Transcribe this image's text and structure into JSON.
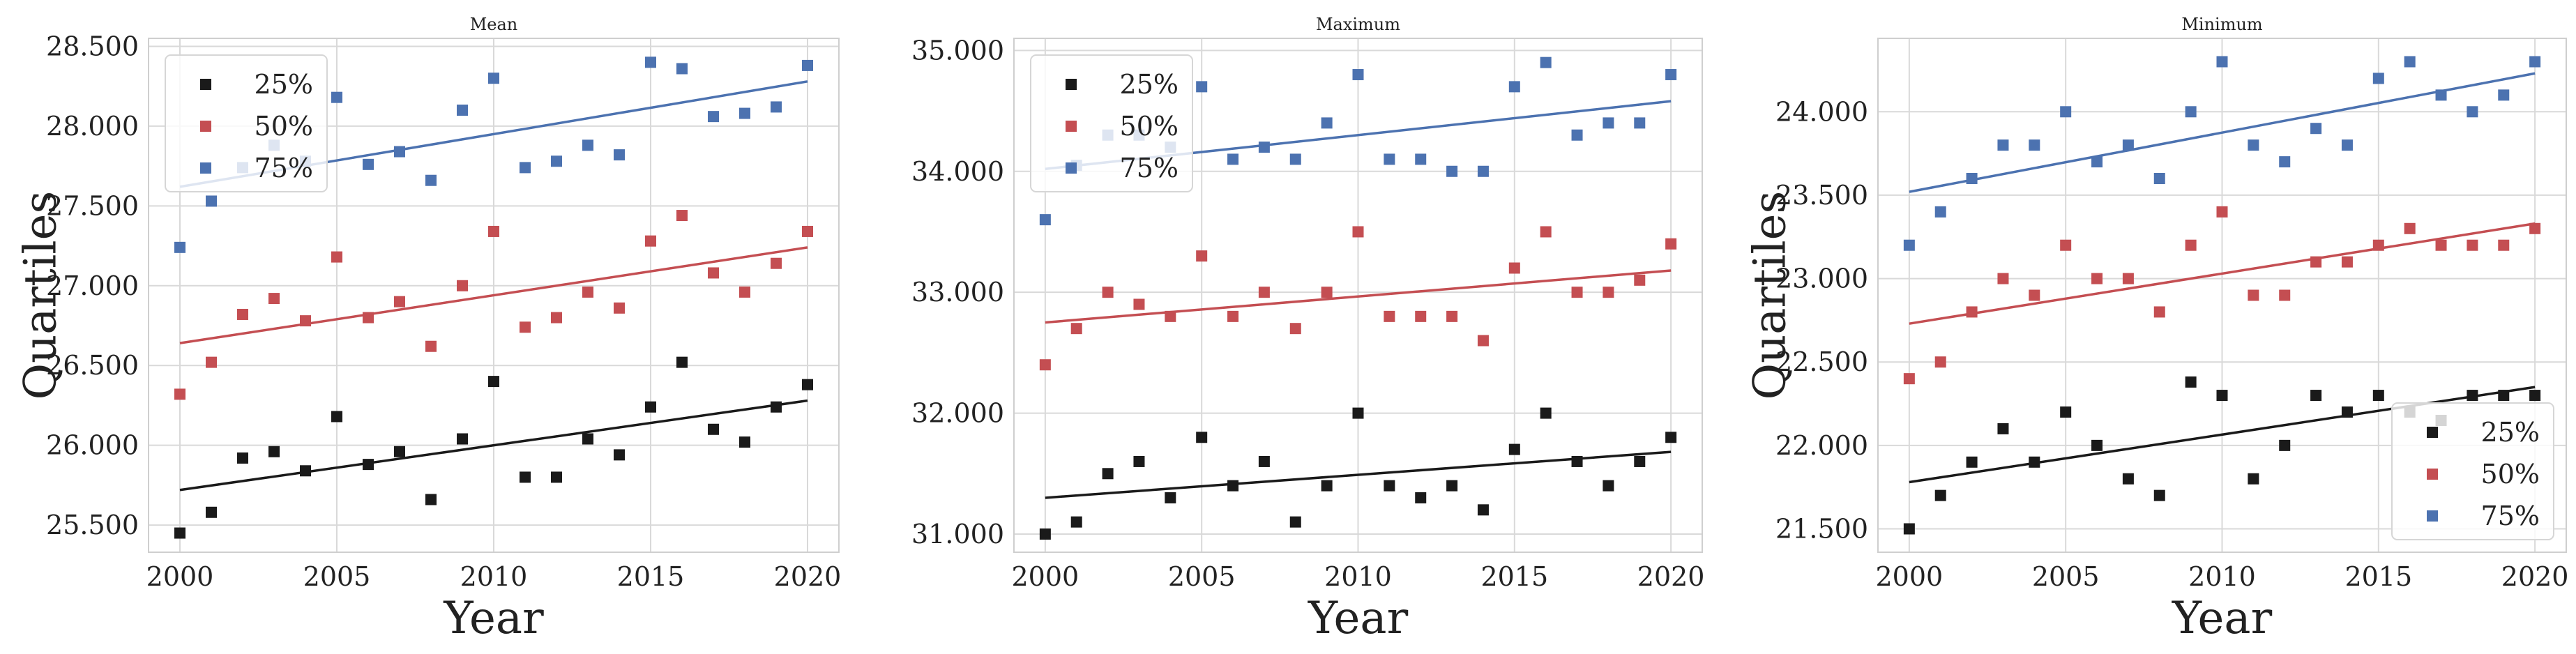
{
  "colors": {
    "25%": "#1a1a1a",
    "50%": "#c44e52",
    "75%": "#4c72b0"
  },
  "series_names": [
    "25%",
    "50%",
    "75%"
  ],
  "chart_data": [
    {
      "type": "scatter",
      "title": "Mean",
      "xlabel": "Year",
      "ylabel": "Quartiles",
      "xlim": [
        1999,
        2021
      ],
      "ylim": [
        25.33,
        28.55
      ],
      "xticks": [
        2000,
        2005,
        2010,
        2015,
        2020
      ],
      "xtick_labels": [
        "2000",
        "2005",
        "2010",
        "2015",
        "2020"
      ],
      "yticks": [
        25.5,
        26.0,
        26.5,
        27.0,
        27.5,
        28.0,
        28.5
      ],
      "ytick_labels": [
        "25.500",
        "26.000",
        "26.500",
        "27.000",
        "27.500",
        "28.000",
        "28.500"
      ],
      "legend": {
        "position": "upper-left",
        "entries": [
          "25%",
          "50%",
          "75%"
        ]
      },
      "x": [
        2000,
        2001,
        2002,
        2003,
        2004,
        2005,
        2006,
        2007,
        2008,
        2009,
        2010,
        2011,
        2012,
        2013,
        2014,
        2015,
        2016,
        2017,
        2018,
        2019,
        2020
      ],
      "series": [
        {
          "name": "25%",
          "values": [
            25.45,
            25.58,
            25.92,
            25.96,
            25.84,
            26.18,
            25.88,
            25.96,
            25.66,
            26.04,
            26.4,
            25.8,
            25.8,
            26.04,
            25.94,
            26.24,
            26.52,
            26.1,
            26.02,
            26.24,
            26.38
          ],
          "trend": [
            25.72,
            26.28
          ]
        },
        {
          "name": "50%",
          "values": [
            26.32,
            26.52,
            26.82,
            26.92,
            26.78,
            27.18,
            26.8,
            26.9,
            26.62,
            27.0,
            27.34,
            26.74,
            26.8,
            26.96,
            26.86,
            27.28,
            27.44,
            27.08,
            26.96,
            27.14,
            27.34
          ],
          "trend": [
            26.64,
            27.24
          ]
        },
        {
          "name": "75%",
          "values": [
            27.24,
            27.53,
            27.74,
            27.88,
            27.78,
            28.18,
            27.76,
            27.84,
            27.66,
            28.1,
            28.3,
            27.74,
            27.78,
            27.88,
            27.82,
            28.4,
            28.36,
            28.06,
            28.08,
            28.12,
            28.38
          ],
          "trend": [
            27.62,
            28.28
          ]
        }
      ]
    },
    {
      "type": "scatter",
      "title": "Maximum",
      "xlabel": "Year",
      "ylabel": "",
      "xlim": [
        1999,
        2021
      ],
      "ylim": [
        30.85,
        35.1
      ],
      "xticks": [
        2000,
        2005,
        2010,
        2015,
        2020
      ],
      "xtick_labels": [
        "2000",
        "2005",
        "2010",
        "2015",
        "2020"
      ],
      "yticks": [
        31.0,
        32.0,
        33.0,
        34.0,
        35.0
      ],
      "ytick_labels": [
        "31.000",
        "32.000",
        "33.000",
        "34.000",
        "35.000"
      ],
      "legend": {
        "position": "upper-left",
        "entries": [
          "25%",
          "50%",
          "75%"
        ]
      },
      "x": [
        2000,
        2001,
        2002,
        2003,
        2004,
        2005,
        2006,
        2007,
        2008,
        2009,
        2010,
        2011,
        2012,
        2013,
        2014,
        2015,
        2016,
        2017,
        2018,
        2019,
        2020
      ],
      "series": [
        {
          "name": "25%",
          "values": [
            31.0,
            31.1,
            31.5,
            31.6,
            31.3,
            31.8,
            31.4,
            31.6,
            31.1,
            31.4,
            32.0,
            31.4,
            31.3,
            31.4,
            31.2,
            31.7,
            32.0,
            31.6,
            31.4,
            31.6,
            31.8
          ],
          "trend": [
            31.3,
            31.68
          ]
        },
        {
          "name": "50%",
          "values": [
            32.4,
            32.7,
            33.0,
            32.9,
            32.8,
            33.3,
            32.8,
            33.0,
            32.7,
            33.0,
            33.5,
            32.8,
            32.8,
            32.8,
            32.6,
            33.2,
            33.5,
            33.0,
            33.0,
            33.1,
            33.4
          ],
          "trend": [
            32.75,
            33.18
          ]
        },
        {
          "name": "75%",
          "values": [
            33.6,
            34.05,
            34.3,
            34.3,
            34.2,
            34.7,
            34.1,
            34.2,
            34.1,
            34.4,
            34.8,
            34.1,
            34.1,
            34.0,
            34.0,
            34.7,
            34.9,
            34.3,
            34.4,
            34.4,
            34.8
          ],
          "trend": [
            34.02,
            34.58
          ]
        }
      ]
    },
    {
      "type": "scatter",
      "title": "Minimum",
      "xlabel": "Year",
      "ylabel": "Quartiles",
      "xlim": [
        1999,
        2021
      ],
      "ylim": [
        21.36,
        24.44
      ],
      "xticks": [
        2000,
        2005,
        2010,
        2015,
        2020
      ],
      "xtick_labels": [
        "2000",
        "2005",
        "2010",
        "2015",
        "2020"
      ],
      "yticks": [
        21.5,
        22.0,
        22.5,
        23.0,
        23.5,
        24.0
      ],
      "ytick_labels": [
        "21.500",
        "22.000",
        "22.500",
        "23.000",
        "23.500",
        "24.000"
      ],
      "legend": {
        "position": "lower-right",
        "entries": [
          "25%",
          "50%",
          "75%"
        ]
      },
      "x": [
        2000,
        2001,
        2002,
        2003,
        2004,
        2005,
        2006,
        2007,
        2008,
        2009,
        2010,
        2011,
        2012,
        2013,
        2014,
        2015,
        2016,
        2017,
        2018,
        2019,
        2020
      ],
      "series": [
        {
          "name": "25%",
          "values": [
            21.5,
            21.7,
            21.9,
            22.1,
            21.9,
            22.2,
            22.0,
            21.8,
            21.7,
            22.38,
            22.3,
            21.8,
            22.0,
            22.3,
            22.2,
            22.3,
            22.2,
            22.15,
            22.3,
            22.3,
            22.3
          ],
          "trend": [
            21.78,
            22.35
          ]
        },
        {
          "name": "50%",
          "values": [
            22.4,
            22.5,
            22.8,
            23.0,
            22.9,
            23.2,
            23.0,
            23.0,
            22.8,
            23.2,
            23.4,
            22.9,
            22.9,
            23.1,
            23.1,
            23.2,
            23.3,
            23.2,
            23.2,
            23.2,
            23.3
          ],
          "trend": [
            22.73,
            23.33
          ]
        },
        {
          "name": "75%",
          "values": [
            23.2,
            23.4,
            23.6,
            23.8,
            23.8,
            24.0,
            23.7,
            23.8,
            23.6,
            24.0,
            24.3,
            23.8,
            23.7,
            23.9,
            23.8,
            24.2,
            24.3,
            24.1,
            24.0,
            24.1,
            24.3
          ],
          "trend": [
            23.52,
            24.23
          ]
        }
      ]
    }
  ]
}
